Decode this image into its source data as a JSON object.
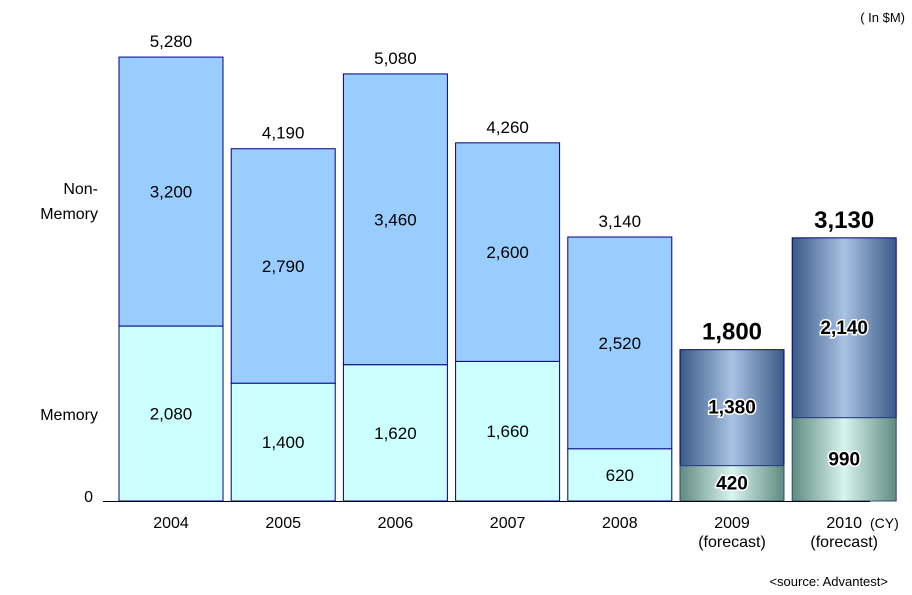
{
  "unit_note": "( In $M)",
  "source_note": "<source: Advantest>",
  "axis": {
    "zero_label": "0",
    "x_unit": "(CY)"
  },
  "side_labels": {
    "non_memory_line1": "Non-",
    "non_memory_line2": "Memory",
    "memory": "Memory"
  },
  "chart_data": {
    "type": "bar",
    "stacked": true,
    "categories": [
      "2004",
      "2005",
      "2006",
      "2007",
      "2008",
      "2009 (forecast)",
      "2010 (forecast)"
    ],
    "category_lines": [
      [
        "2004"
      ],
      [
        "2005"
      ],
      [
        "2006"
      ],
      [
        "2007"
      ],
      [
        "2008"
      ],
      [
        "2009",
        "(forecast)"
      ],
      [
        "2010",
        "(forecast)"
      ]
    ],
    "series": [
      {
        "name": "Memory",
        "values": [
          2080,
          1400,
          1620,
          1660,
          620,
          420,
          990
        ]
      },
      {
        "name": "Non-Memory",
        "values": [
          3200,
          2790,
          3460,
          2600,
          2520,
          1380,
          2140
        ]
      }
    ],
    "totals": [
      5280,
      4190,
      5080,
      4260,
      3140,
      1800,
      3130
    ],
    "value_labels": {
      "memory": [
        "2,080",
        "1,400",
        "1,620",
        "1,660",
        "620",
        "420",
        "990"
      ],
      "non_memory": [
        "3,200",
        "2,790",
        "3,460",
        "2,600",
        "2,520",
        "1,380",
        "2,140"
      ],
      "totals": [
        "5,280",
        "4,190",
        "5,080",
        "4,260",
        "3,140",
        "1,800",
        "3,130"
      ]
    },
    "forecast": [
      false,
      false,
      false,
      false,
      false,
      true,
      true
    ],
    "ylim": [
      0,
      5400
    ],
    "grid": false,
    "colors": {
      "memory": "#ccffff",
      "non_memory": "#99ccff",
      "forecast_memory_light": "#d8f4ee",
      "forecast_memory_dark": "#5f8b80",
      "forecast_non_memory_light": "#a9c2e4",
      "forecast_non_memory_dark": "#3a5a86",
      "forecast_memory_border": "#2f4a7a",
      "border": "#000080"
    }
  }
}
